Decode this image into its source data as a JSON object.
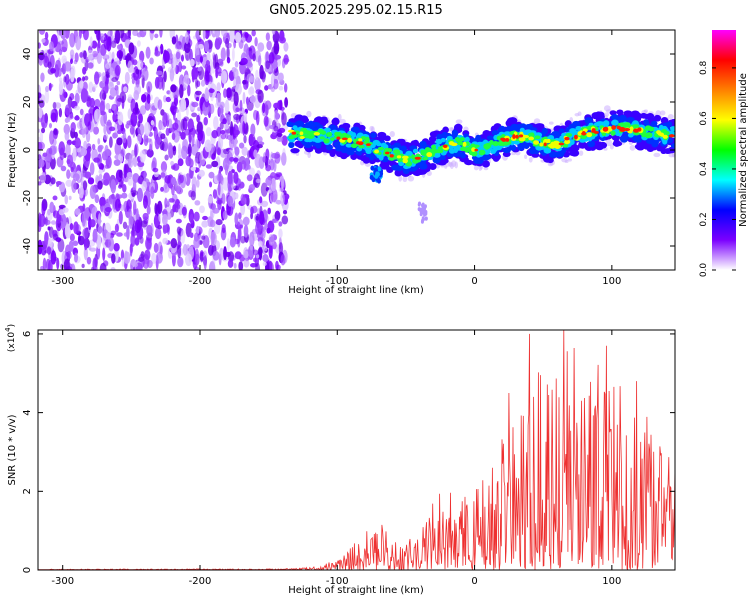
{
  "title": "GN05.2025.295.02.15.R15",
  "chart_data": [
    {
      "type": "heatmap",
      "name": "spectrogram",
      "xlabel": "Height of straight line (km)",
      "ylabel": "Frequency (Hz)",
      "xlim": [
        -318,
        146
      ],
      "ylim": [
        -50,
        50
      ],
      "xticks": [
        -300,
        -200,
        -100,
        0,
        100
      ],
      "xtick_labels": [
        "-300",
        "-200",
        "-100",
        "0",
        "100"
      ],
      "yticks": [
        -40,
        -20,
        0,
        20,
        40
      ],
      "ytick_labels": [
        "-40",
        "-20",
        "0",
        "20",
        "40"
      ],
      "noise_region_x": [
        -318,
        -137
      ],
      "ridge": {
        "x": [
          -135,
          -120,
          -110,
          -100,
          -90,
          -80,
          -70,
          -60,
          -50,
          -40,
          -30,
          -20,
          -10,
          0,
          10,
          20,
          30,
          40,
          50,
          60,
          70,
          80,
          90,
          100,
          110,
          120,
          130,
          146
        ],
        "y": [
          7,
          6,
          6,
          5,
          4,
          3,
          0,
          -2,
          -4,
          -3,
          0,
          2,
          3,
          0,
          1,
          4,
          6,
          5,
          3,
          2,
          5,
          7,
          8,
          9,
          9,
          8,
          7,
          6
        ]
      },
      "colorbar": {
        "label": "Normalized spectral amplitude",
        "range": [
          0,
          0.95
        ],
        "ticks": [
          0.0,
          0.2,
          0.4,
          0.6,
          0.8
        ],
        "tick_labels": [
          "0.0",
          "0.2",
          "0.4",
          "0.6",
          "0.8"
        ],
        "colors": [
          "#ffffff",
          "#7b00ff",
          "#0000ff",
          "#00ffff",
          "#00ff00",
          "#ffff00",
          "#ff8000",
          "#ff0000",
          "#ff00ff"
        ]
      }
    },
    {
      "type": "line",
      "name": "snr",
      "xlabel": "Height of straight line (km)",
      "ylabel": "SNR (10 * v/v)",
      "y_multiplier": "(x10",
      "y_multiplier_exp": "4",
      "y_multiplier_close": ")",
      "xlim": [
        -318,
        146
      ],
      "ylim": [
        0,
        6.1
      ],
      "xticks": [
        -300,
        -200,
        -100,
        0,
        100
      ],
      "xtick_labels": [
        "-300",
        "-200",
        "-100",
        "0",
        "100"
      ],
      "yticks": [
        0,
        2,
        4,
        6
      ],
      "ytick_labels": [
        "0",
        "2",
        "4",
        "6"
      ],
      "color": "#ee3030",
      "envelope": {
        "x": [
          -318,
          -140,
          -125,
          -115,
          -100,
          -90,
          -80,
          -70,
          -60,
          -50,
          -40,
          -30,
          -20,
          -10,
          0,
          10,
          20,
          30,
          40,
          50,
          60,
          70,
          80,
          90,
          100,
          110,
          120,
          130,
          140,
          146
        ],
        "y": [
          0.02,
          0.03,
          0.05,
          0.1,
          0.25,
          0.6,
          1.0,
          1.1,
          0.9,
          0.7,
          1.0,
          1.8,
          2.2,
          2.0,
          2.0,
          2.5,
          3.5,
          4.0,
          4.8,
          5.2,
          5.0,
          5.0,
          5.3,
          5.0,
          4.8,
          4.2,
          3.8,
          3.5,
          3.0,
          2.5
        ]
      },
      "peaks": [
        {
          "x": 40,
          "y": 6.0
        },
        {
          "x": 65,
          "y": 6.1
        },
        {
          "x": 25,
          "y": 4.5
        },
        {
          "x": 96,
          "y": 5.7
        },
        {
          "x": 118,
          "y": 4.8
        }
      ]
    }
  ]
}
